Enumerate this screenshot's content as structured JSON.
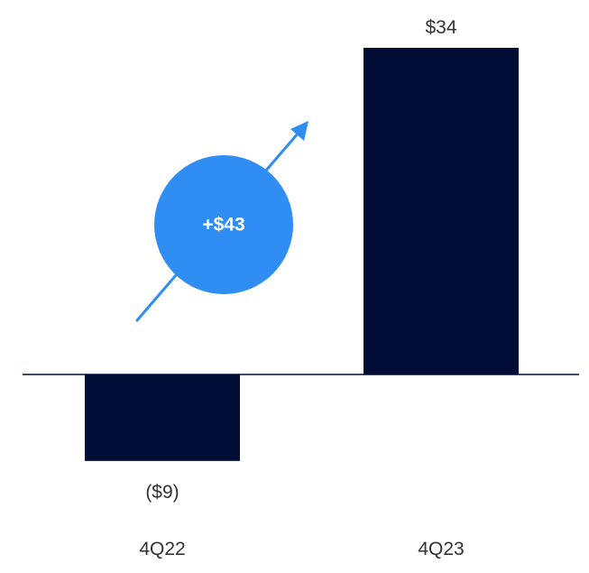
{
  "chart_data": {
    "type": "bar",
    "title": "",
    "xlabel": "",
    "ylabel": "",
    "categories": [
      "4Q22",
      "4Q23"
    ],
    "values": [
      -9,
      34
    ],
    "value_labels": [
      "($9)",
      "$34"
    ],
    "ylim": [
      -9,
      34
    ],
    "grid": false,
    "legend": "none",
    "annotation": {
      "text": "+$43",
      "type": "circle-with-arrow"
    }
  },
  "colors": {
    "bar": "#020d36",
    "baseline": "#020d36",
    "accent": "#2f8df4",
    "text": "#333333",
    "annotation_text": "#ffffff"
  }
}
